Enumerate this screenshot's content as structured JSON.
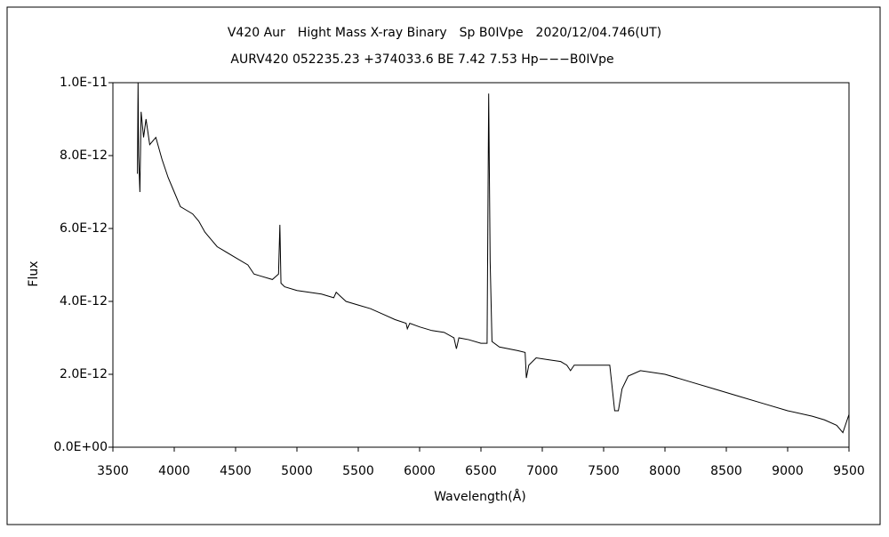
{
  "chart_data": {
    "type": "line",
    "title": "V420 Aur　Hight Mass X-ray Binary　Sp B0IVpe　2020/12/04.746(UT)",
    "subtitle": "AURV420 052235.23 +374033.6 BE 7.42 7.53 Hp−−−B0IVpe",
    "x_label": "Wavelength(Å)",
    "y_label": "Flux",
    "color": "#000000",
    "xlim": [
      3500,
      9500
    ],
    "xticks": [
      3500,
      4000,
      4500,
      5000,
      5500,
      6000,
      6500,
      7000,
      7500,
      8000,
      8500,
      9000,
      9500
    ],
    "ylim": [
      0,
      1e-11
    ],
    "yticks": [
      {
        "value": 0,
        "label": "0.0E+00"
      },
      {
        "value": 2e-12,
        "label": "2.0E-12"
      },
      {
        "value": 4e-12,
        "label": "4.0E-12"
      },
      {
        "value": 6e-12,
        "label": "6.0E-12"
      },
      {
        "value": 8e-12,
        "label": "8.0E-12"
      },
      {
        "value": 1e-11,
        "label": "1.0E-11"
      }
    ],
    "x": [
      3700,
      3705,
      3710,
      3720,
      3730,
      3750,
      3770,
      3800,
      3850,
      3900,
      3950,
      4000,
      4050,
      4100,
      4150,
      4200,
      4250,
      4300,
      4350,
      4400,
      4500,
      4600,
      4650,
      4700,
      4800,
      4850,
      4861,
      4870,
      4900,
      5000,
      5100,
      5200,
      5300,
      5320,
      5400,
      5500,
      5600,
      5700,
      5800,
      5890,
      5900,
      5920,
      6000,
      6100,
      6200,
      6280,
      6300,
      6320,
      6400,
      6500,
      6550,
      6563,
      6575,
      6590,
      6650,
      6800,
      6860,
      6870,
      6890,
      6950,
      7050,
      7150,
      7200,
      7230,
      7260,
      7400,
      7550,
      7590,
      7620,
      7650,
      7700,
      7800,
      8000,
      8200,
      8400,
      8600,
      8800,
      9000,
      9200,
      9300,
      9400,
      9450,
      9500
    ],
    "values": [
      7.5e-12,
      1e-11,
      8e-12,
      7e-12,
      9.2e-12,
      8.5e-12,
      9e-12,
      8.3e-12,
      8.5e-12,
      7.9e-12,
      7.4e-12,
      7e-12,
      6.6e-12,
      6.5e-12,
      6.4e-12,
      6.2e-12,
      5.9e-12,
      5.7e-12,
      5.5e-12,
      5.4e-12,
      5.2e-12,
      5e-12,
      4.75e-12,
      4.7e-12,
      4.6e-12,
      4.75e-12,
      6.1e-12,
      4.5e-12,
      4.4e-12,
      4.3e-12,
      4.25e-12,
      4.2e-12,
      4.1e-12,
      4.25e-12,
      4e-12,
      3.9e-12,
      3.8e-12,
      3.65e-12,
      3.5e-12,
      3.4e-12,
      3.25e-12,
      3.4e-12,
      3.3e-12,
      3.2e-12,
      3.15e-12,
      3e-12,
      2.7e-12,
      3e-12,
      2.95e-12,
      2.85e-12,
      2.85e-12,
      9.7e-12,
      5.1e-12,
      2.9e-12,
      2.75e-12,
      2.65e-12,
      2.6e-12,
      1.9e-12,
      2.25e-12,
      2.45e-12,
      2.4e-12,
      2.35e-12,
      2.25e-12,
      2.1e-12,
      2.25e-12,
      2.25e-12,
      2.25e-12,
      1e-12,
      1e-12,
      1.6e-12,
      1.95e-12,
      2.1e-12,
      2e-12,
      1.8e-12,
      1.6e-12,
      1.4e-12,
      1.2e-12,
      1e-12,
      8.5e-13,
      7.5e-13,
      6e-13,
      4e-13,
      9e-13
    ]
  }
}
